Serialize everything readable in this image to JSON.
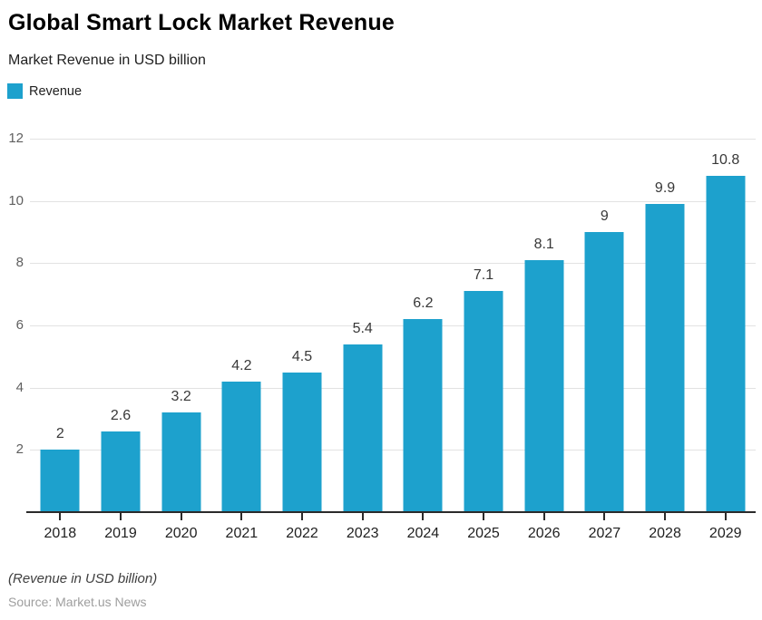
{
  "header": {
    "title": "Global Smart Lock Market Revenue",
    "subtitle": "Market Revenue in USD billion"
  },
  "legend": {
    "label": "Revenue"
  },
  "footer": {
    "note": "(Revenue in USD billion)",
    "source": "Source: Market.us News"
  },
  "colors": {
    "bar": "#1DA1CD",
    "grid": "#E2E2E2",
    "axis": "#2B2B2B",
    "y_tick_label": "#5F5F5F",
    "value_label": "#383838"
  },
  "chart_data": {
    "type": "bar",
    "title": "Global Smart Lock Market Revenue",
    "subtitle": "Market Revenue in USD billion",
    "series_name": "Revenue",
    "categories": [
      "2018",
      "2019",
      "2020",
      "2021",
      "2022",
      "2023",
      "2024",
      "2025",
      "2026",
      "2027",
      "2028",
      "2029"
    ],
    "values": [
      2,
      2.6,
      3.2,
      4.2,
      4.5,
      5.4,
      6.2,
      7.1,
      8.1,
      9,
      9.9,
      10.8
    ],
    "xlabel": "",
    "ylabel": "",
    "ylim": [
      0,
      12
    ],
    "yticks": [
      2,
      4,
      6,
      8,
      10,
      12
    ],
    "grid": true,
    "legend_position": "top-left",
    "value_labels": true,
    "footnote": "(Revenue in USD billion)",
    "source": "Source: Market.us News"
  }
}
